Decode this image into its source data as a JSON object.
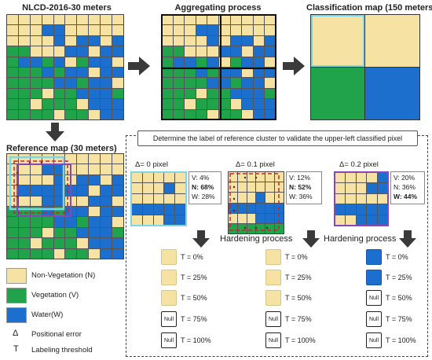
{
  "titles": {
    "nlcd": "NLCD-2016-30 meters",
    "aggregating": "Aggregating process",
    "classification": "Classification map (150 meters)",
    "reference": "Reference map (30 meters)"
  },
  "box_heading": "Determine the label of reference cluster to validate the upper-left classified pixel",
  "legend": [
    {
      "label": "Non-Vegetation (N)",
      "color": "#f6e2a3"
    },
    {
      "label": "Vegetation (V)",
      "color": "#21a34b"
    },
    {
      "label": "Water(W)",
      "color": "#1d6fce"
    }
  ],
  "legend_symbols": [
    {
      "symbol": "Δ",
      "label": "Positional error"
    },
    {
      "symbol": "T",
      "label": "Labeling threshold"
    }
  ],
  "cases": [
    {
      "delta": "Δ= 0 pixel",
      "stats": [
        "V: 4%",
        "N: 68%",
        "W: 28%"
      ],
      "bold": 1,
      "hardening": ""
    },
    {
      "delta": "Δ= 0.1 pixel",
      "stats": [
        "V: 12%",
        "N: 52%",
        "W: 36%"
      ],
      "bold": 1,
      "hardening": "Hardening process"
    },
    {
      "delta": "Δ= 0.2 pixel",
      "stats": [
        "V: 20%",
        "N: 36%",
        "W: 44%"
      ],
      "bold": 2,
      "hardening": "Hardening process"
    }
  ],
  "thresholds": [
    {
      "label": "T = 0%",
      "c0": "Y",
      "c1": "Y",
      "c2": "B"
    },
    {
      "label": "T = 25%",
      "c0": "Y",
      "c1": "Y",
      "c2": "B"
    },
    {
      "label": "T = 50%",
      "c0": "Y",
      "c1": "Y",
      "c2": "N"
    },
    {
      "label": "T = 75%",
      "c0": "N",
      "c1": "N",
      "c2": "N"
    },
    {
      "label": "T = 100%",
      "c0": "N",
      "c1": "N",
      "c2": "N"
    }
  ],
  "null_label": "Null",
  "colors": {
    "non_vegetation": "#f6e2a3",
    "vegetation": "#21a34b",
    "water": "#1d6fce",
    "arrow": "#3a3a3a"
  }
}
